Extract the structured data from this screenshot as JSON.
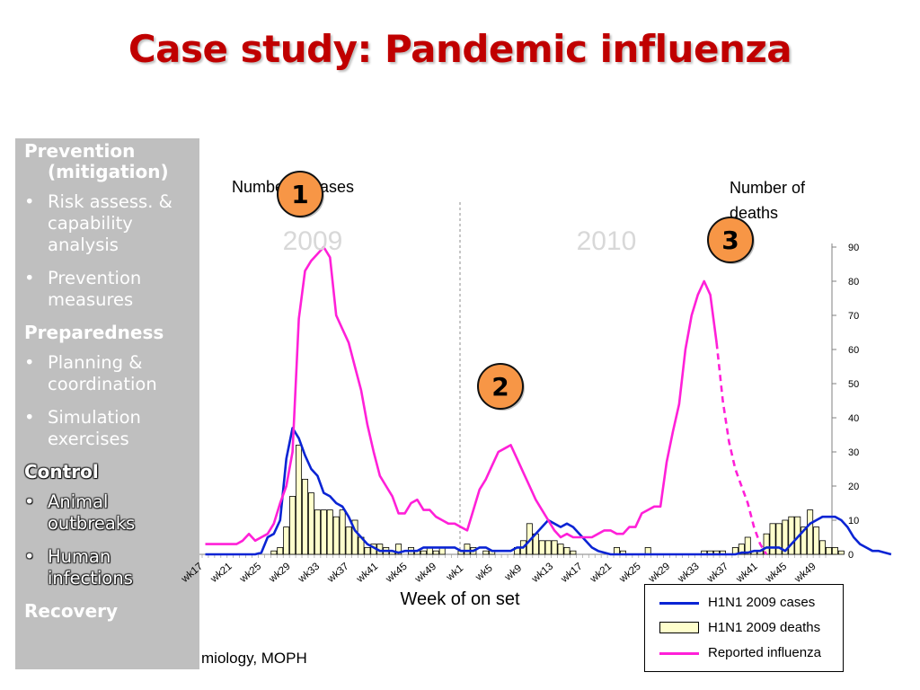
{
  "title": "Case study: Pandemic influenza",
  "sidebar": {
    "sections": [
      {
        "heading": "Prevention",
        "heading_cont": "(mitigation)",
        "dark": false,
        "items": [
          "Risk assess. & capability analysis",
          "Prevention measures"
        ]
      },
      {
        "heading": "Preparedness",
        "dark": false,
        "items": [
          "Planning & coordination",
          "Simulation exercises"
        ]
      },
      {
        "heading": "Control",
        "dark": true,
        "items": [
          "Animal outbreaks",
          "Human infections"
        ]
      },
      {
        "heading": "Recovery",
        "dark": false,
        "items": []
      }
    ]
  },
  "source_note": "miology, MOPH",
  "chart_data": {
    "type": "bar+line",
    "left_axis_label": "Number of cases",
    "right_axis_label": "Number of deaths",
    "xlabel": "Week of on set",
    "year_labels": [
      "2009",
      "2010"
    ],
    "right_ylim": [
      0,
      90
    ],
    "right_ticks": [
      0,
      10,
      20,
      30,
      40,
      50,
      60,
      70,
      80,
      90
    ],
    "x_tick_labels": [
      "wk17",
      "wk21",
      "wk25",
      "wk29",
      "wk33",
      "wk37",
      "wk41",
      "wk45",
      "wk49",
      "wk1",
      "wk5",
      "wk9",
      "wk13",
      "wk17",
      "wk21",
      "wk25",
      "wk29",
      "wk33",
      "wk37",
      "wk41",
      "wk45",
      "wk49"
    ],
    "series": [
      {
        "name": "H1N1 2009 cases",
        "color": "#0a24d4",
        "type": "line",
        "values": [
          0,
          0,
          0,
          0,
          0,
          0,
          0,
          0,
          0,
          0.5,
          5,
          6,
          10,
          28,
          37,
          34,
          29,
          25,
          23,
          18,
          17,
          15,
          14,
          11,
          7,
          5,
          3,
          2,
          1,
          1,
          1,
          0.5,
          1,
          1,
          1,
          2,
          2,
          2,
          2,
          2,
          2,
          1,
          1,
          1,
          2,
          2,
          1,
          1,
          1,
          1,
          2,
          2,
          4,
          6,
          8,
          10,
          9,
          8,
          9,
          8,
          6,
          4,
          2,
          1,
          0.5,
          0,
          0,
          0,
          0,
          0,
          0,
          0,
          0,
          0,
          0,
          0,
          0,
          0,
          0,
          0,
          0,
          0,
          0,
          0,
          0,
          0,
          0.5,
          0.5,
          1,
          1,
          2,
          2,
          2,
          1,
          3,
          5,
          7,
          9,
          10,
          11,
          11,
          11,
          10,
          8,
          5,
          3,
          2,
          1,
          1,
          0.5,
          0
        ]
      },
      {
        "name": "H1N1 2009 deaths",
        "color": "#ffffcc",
        "type": "bar",
        "values": [
          0,
          0,
          0,
          0,
          0,
          0,
          0,
          0,
          0,
          0,
          0,
          1,
          2,
          8,
          17,
          32,
          22,
          18,
          13,
          13,
          13,
          11,
          13,
          8,
          10,
          5,
          2,
          3,
          3,
          2,
          1,
          3,
          0,
          2,
          1,
          1,
          2,
          1,
          2,
          0,
          0,
          1,
          3,
          2,
          0,
          1,
          1,
          0,
          0,
          0,
          2,
          4,
          9,
          6,
          4,
          4,
          4,
          3,
          2,
          1,
          0,
          0,
          0,
          0,
          0,
          0,
          2,
          1,
          0,
          0,
          0,
          2,
          0,
          0,
          0,
          0,
          0,
          0,
          0,
          0,
          1,
          1,
          1,
          1,
          0,
          2,
          3,
          5,
          1,
          1,
          6,
          9,
          9,
          10,
          11,
          11,
          8,
          13,
          8,
          4,
          2,
          2,
          1,
          0,
          0,
          0,
          0,
          0,
          0,
          0,
          0,
          0,
          0
        ]
      },
      {
        "name": "Reported influenza",
        "color": "#ff20d8",
        "type": "line",
        "values": [
          3,
          3,
          3,
          3,
          3,
          3,
          4,
          6,
          4,
          5,
          6,
          9,
          15,
          20,
          30,
          69,
          83,
          86,
          88,
          90,
          87,
          70,
          66,
          62,
          55,
          48,
          38,
          30,
          23,
          20,
          17,
          12,
          12,
          15,
          16,
          13,
          13,
          11,
          10,
          9,
          9,
          8,
          7,
          13,
          19,
          22,
          26,
          30,
          31,
          32,
          28,
          24,
          20,
          16,
          13,
          10,
          7,
          5,
          6,
          5,
          5,
          5,
          5,
          6,
          7,
          7,
          6,
          6,
          8,
          8,
          12,
          13,
          14,
          14,
          27,
          36,
          44,
          60,
          70,
          76,
          80,
          76,
          62
        ],
        "dashed_tail": [
          62,
          45,
          33,
          25,
          20,
          15,
          8,
          3,
          0
        ]
      }
    ],
    "annotations": [
      "1",
      "2",
      "3"
    ]
  },
  "legend": {
    "items": [
      {
        "label": "H1N1 2009 cases",
        "color": "#0a24d4",
        "kind": "line"
      },
      {
        "label": "H1N1 2009 deaths",
        "color": "#ffffcc",
        "kind": "bar"
      },
      {
        "label": "Reported influenza",
        "color": "#ff20d8",
        "kind": "line"
      }
    ]
  }
}
